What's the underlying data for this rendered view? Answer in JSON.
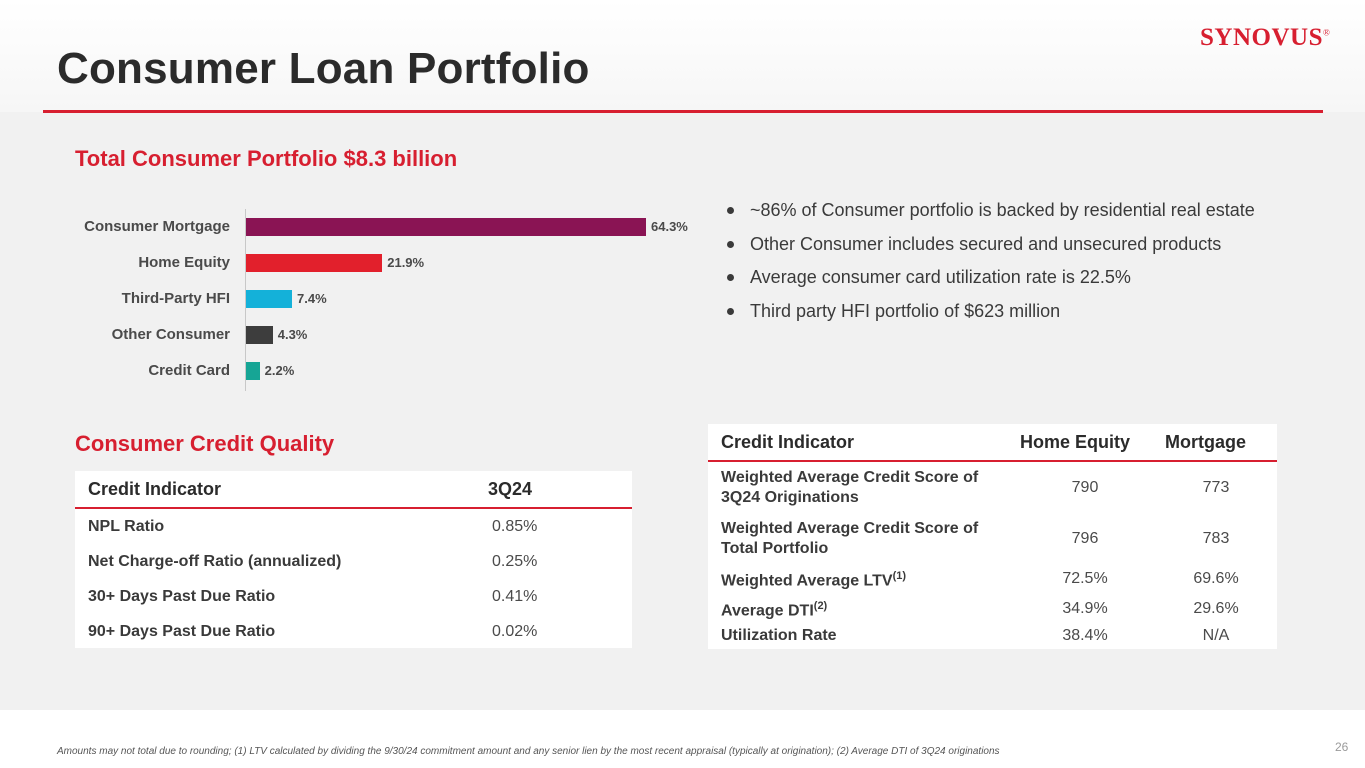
{
  "header": {
    "title": "Consumer Loan Portfolio",
    "logo_text": "SYNOVUS",
    "logo_mark": "®",
    "brand_color": "#d71f30"
  },
  "portfolio": {
    "title": "Total Consumer Portfolio $8.3 billion"
  },
  "chart_data": {
    "type": "bar",
    "orientation": "horizontal",
    "title": "Total Consumer Portfolio $8.3 billion",
    "categories": [
      "Consumer Mortgage",
      "Home Equity",
      "Third-Party HFI",
      "Other Consumer",
      "Credit Card"
    ],
    "values": [
      64.3,
      21.9,
      7.4,
      4.3,
      2.2
    ],
    "value_labels": [
      "64.3%",
      "21.9%",
      "7.4%",
      "4.3%",
      "2.2%"
    ],
    "colors": [
      "#8a1454",
      "#e2202c",
      "#14b1d9",
      "#3d3d3d",
      "#16a595"
    ],
    "xlim": [
      0,
      64.3
    ],
    "unit": "%",
    "grid": false,
    "legend": "none"
  },
  "bullets": [
    "~86% of Consumer portfolio is backed by residential real estate",
    "Other Consumer includes secured and unsecured products",
    "Average consumer card utilization rate is 22.5%",
    "Third party HFI portfolio of $623 million"
  ],
  "credit_quality": {
    "title": "Consumer Credit Quality",
    "columns": [
      "Credit Indicator",
      "3Q24"
    ],
    "rows": [
      [
        "NPL Ratio",
        "0.85%"
      ],
      [
        "Net Charge-off Ratio (annualized)",
        "0.25%"
      ],
      [
        "30+ Days Past Due Ratio",
        "0.41%"
      ],
      [
        "90+ Days Past Due Ratio",
        "0.02%"
      ]
    ]
  },
  "indicator_table": {
    "columns": [
      "Credit Indicator",
      "Home Equity",
      "Mortgage"
    ],
    "rows": [
      {
        "label": "Weighted Average Credit Score of 3Q24 Originations",
        "sup": "",
        "home_equity": "790",
        "mortgage": "773"
      },
      {
        "label": "Weighted Average Credit Score of Total Portfolio",
        "sup": "",
        "home_equity": "796",
        "mortgage": "783"
      },
      {
        "label": "Weighted Average LTV",
        "sup": "(1)",
        "home_equity": "72.5%",
        "mortgage": "69.6%"
      },
      {
        "label": "Average DTI",
        "sup": "(2)",
        "home_equity": "34.9%",
        "mortgage": "29.6%"
      },
      {
        "label": "Utilization Rate",
        "sup": "",
        "home_equity": "38.4%",
        "mortgage": "N/A"
      }
    ]
  },
  "footer": {
    "footnote": "Amounts may not total due to rounding;  (1) LTV calculated by dividing the 9/30/24 commitment amount and any senior lien by the most recent appraisal (typically at origination); (2) Average DTI of 3Q24 originations",
    "page_number": "26"
  }
}
